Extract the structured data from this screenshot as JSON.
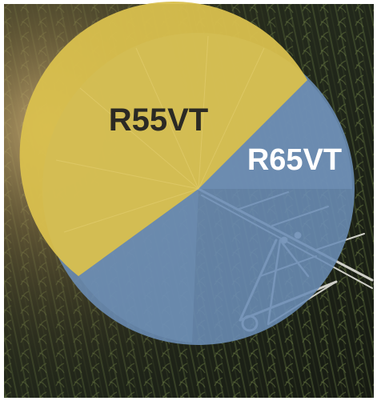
{
  "graphic": {
    "photo_description_icon": "center-pivot-irrigation-photo",
    "labels": {
      "yellow_zone": "R55VT",
      "blue_zone": "R65VT"
    },
    "colors": {
      "background_dark": "#1a1d16",
      "field_green": "#3e4a2c",
      "sun_glow": "#c9a86a",
      "yellow_fill": "#d9c04e",
      "blue_fill": "#6f8fb4",
      "blue_ring": "#6b8db6",
      "yellow_text": "#2b2a24",
      "blue_text": "#ffffff",
      "pivot_metal": "#c8c8c2"
    }
  }
}
